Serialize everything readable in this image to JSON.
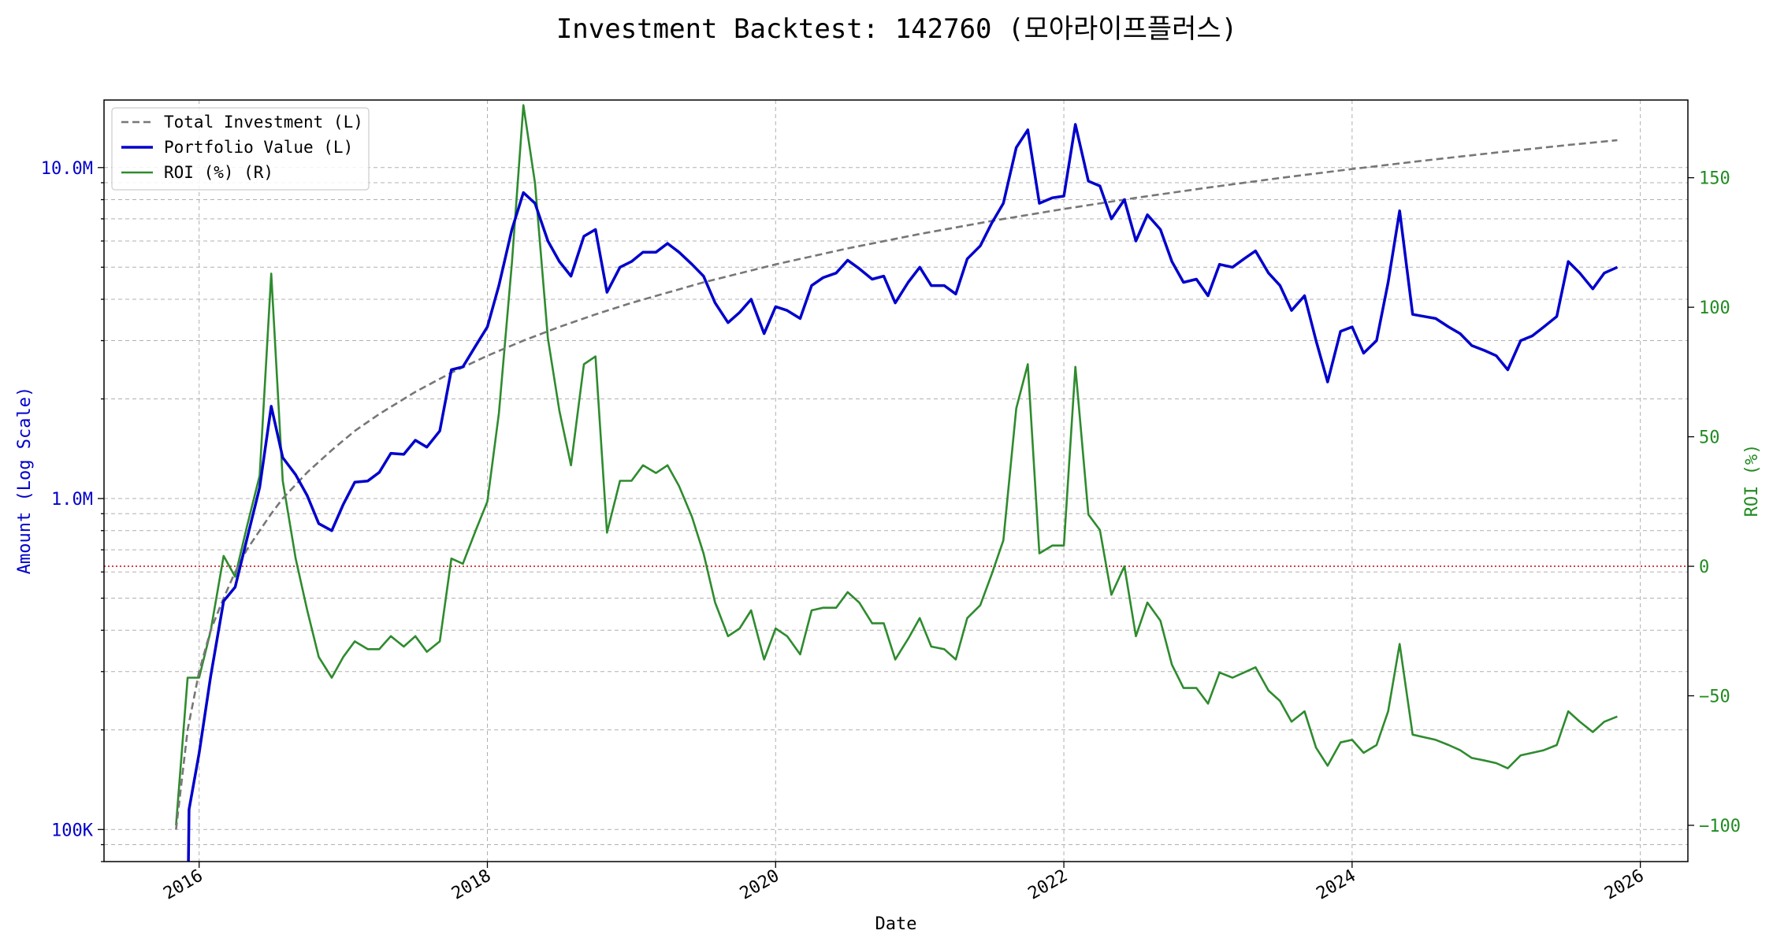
{
  "chart_data": {
    "type": "line",
    "title": "Investment Backtest: 142760 (모아라이프플러스)",
    "xlabel": "Date",
    "ylabel_left": "Amount (Log Scale)",
    "ylabel_right": "ROI (%)",
    "left_axis": {
      "scale": "log",
      "range": [
        80000,
        16000000
      ],
      "ticks": [
        {
          "value": 100000,
          "label": "100K"
        },
        {
          "value": 1000000,
          "label": "1.0M"
        },
        {
          "value": 10000000,
          "label": "10.0M"
        }
      ]
    },
    "right_axis": {
      "scale": "linear",
      "range": [
        -114,
        180
      ],
      "ticks": [
        {
          "value": -100,
          "label": "−100"
        },
        {
          "value": -50,
          "label": "−50"
        },
        {
          "value": 0,
          "label": "0"
        },
        {
          "value": 50,
          "label": "50"
        },
        {
          "value": 100,
          "label": "100"
        },
        {
          "value": 150,
          "label": "150"
        }
      ]
    },
    "x_axis": {
      "range": [
        2015.34,
        2026.33
      ],
      "ticks": [
        {
          "value": 2016,
          "label": "2016"
        },
        {
          "value": 2018,
          "label": "2018"
        },
        {
          "value": 2020,
          "label": "2020"
        },
        {
          "value": 2022,
          "label": "2022"
        },
        {
          "value": 2024,
          "label": "2024"
        },
        {
          "value": 2026,
          "label": "2026"
        }
      ]
    },
    "grid": true,
    "legend_position": "top-left",
    "reference_line": {
      "axis": "right",
      "value": 0,
      "color": "#cc0000"
    },
    "series": [
      {
        "name": "Total Investment (L)",
        "axis": "left",
        "color": "#777777",
        "style": "dashed",
        "points": [
          [
            2015.84,
            100000
          ],
          [
            2015.92,
            200000
          ],
          [
            2016.0,
            300000
          ],
          [
            2016.08,
            400000
          ],
          [
            2016.17,
            500000
          ],
          [
            2016.25,
            600000
          ],
          [
            2016.33,
            700000
          ],
          [
            2016.42,
            800000
          ],
          [
            2016.5,
            900000
          ],
          [
            2016.58,
            1000000
          ],
          [
            2016.75,
            1200000
          ],
          [
            2016.92,
            1400000
          ],
          [
            2017.08,
            1600000
          ],
          [
            2017.25,
            1800000
          ],
          [
            2017.5,
            2100000
          ],
          [
            2017.75,
            2400000
          ],
          [
            2018.0,
            2700000
          ],
          [
            2018.25,
            3000000
          ],
          [
            2018.5,
            3300000
          ],
          [
            2018.75,
            3600000
          ],
          [
            2019.0,
            3900000
          ],
          [
            2019.5,
            4500000
          ],
          [
            2020.0,
            5100000
          ],
          [
            2020.5,
            5700000
          ],
          [
            2021.0,
            6300000
          ],
          [
            2021.5,
            6900000
          ],
          [
            2022.0,
            7500000
          ],
          [
            2022.5,
            8100000
          ],
          [
            2023.0,
            8700000
          ],
          [
            2023.5,
            9300000
          ],
          [
            2024.0,
            9900000
          ],
          [
            2024.5,
            10500000
          ],
          [
            2025.0,
            11100000
          ],
          [
            2025.5,
            11700000
          ],
          [
            2025.84,
            12100000
          ]
        ]
      },
      {
        "name": "Portfolio Value (L)",
        "axis": "left",
        "color": "#0000cc",
        "style": "solid",
        "points": [
          [
            2015.92,
            50000
          ],
          [
            2015.93,
            115000
          ],
          [
            2016.0,
            170000
          ],
          [
            2016.08,
            290000
          ],
          [
            2016.17,
            490000
          ],
          [
            2016.25,
            540000
          ],
          [
            2016.33,
            750000
          ],
          [
            2016.42,
            1080000
          ],
          [
            2016.5,
            1900000
          ],
          [
            2016.58,
            1330000
          ],
          [
            2016.67,
            1180000
          ],
          [
            2016.75,
            1020000
          ],
          [
            2016.83,
            840000
          ],
          [
            2016.92,
            800000
          ],
          [
            2017.0,
            960000
          ],
          [
            2017.08,
            1120000
          ],
          [
            2017.17,
            1130000
          ],
          [
            2017.25,
            1200000
          ],
          [
            2017.33,
            1370000
          ],
          [
            2017.42,
            1360000
          ],
          [
            2017.5,
            1500000
          ],
          [
            2017.58,
            1430000
          ],
          [
            2017.67,
            1600000
          ],
          [
            2017.75,
            2450000
          ],
          [
            2017.83,
            2500000
          ],
          [
            2017.92,
            2900000
          ],
          [
            2018.0,
            3300000
          ],
          [
            2018.08,
            4400000
          ],
          [
            2018.17,
            6500000
          ],
          [
            2018.25,
            8400000
          ],
          [
            2018.33,
            7800000
          ],
          [
            2018.42,
            6000000
          ],
          [
            2018.5,
            5200000
          ],
          [
            2018.58,
            4700000
          ],
          [
            2018.67,
            6200000
          ],
          [
            2018.75,
            6500000
          ],
          [
            2018.83,
            4200000
          ],
          [
            2018.92,
            5000000
          ],
          [
            2019.0,
            5200000
          ],
          [
            2019.08,
            5550000
          ],
          [
            2019.17,
            5550000
          ],
          [
            2019.25,
            5900000
          ],
          [
            2019.33,
            5550000
          ],
          [
            2019.42,
            5100000
          ],
          [
            2019.5,
            4700000
          ],
          [
            2019.58,
            3900000
          ],
          [
            2019.67,
            3400000
          ],
          [
            2019.75,
            3650000
          ],
          [
            2019.83,
            4000000
          ],
          [
            2019.92,
            3150000
          ],
          [
            2020.0,
            3800000
          ],
          [
            2020.08,
            3700000
          ],
          [
            2020.17,
            3500000
          ],
          [
            2020.25,
            4400000
          ],
          [
            2020.33,
            4650000
          ],
          [
            2020.42,
            4800000
          ],
          [
            2020.5,
            5250000
          ],
          [
            2020.58,
            4950000
          ],
          [
            2020.67,
            4600000
          ],
          [
            2020.75,
            4700000
          ],
          [
            2020.83,
            3900000
          ],
          [
            2020.92,
            4500000
          ],
          [
            2021.0,
            5000000
          ],
          [
            2021.08,
            4400000
          ],
          [
            2021.17,
            4400000
          ],
          [
            2021.25,
            4150000
          ],
          [
            2021.33,
            5300000
          ],
          [
            2021.42,
            5800000
          ],
          [
            2021.5,
            6800000
          ],
          [
            2021.58,
            7800000
          ],
          [
            2021.67,
            11500000
          ],
          [
            2021.75,
            13000000
          ],
          [
            2021.83,
            7800000
          ],
          [
            2021.92,
            8100000
          ],
          [
            2022.0,
            8200000
          ],
          [
            2022.08,
            13500000
          ],
          [
            2022.17,
            9100000
          ],
          [
            2022.25,
            8800000
          ],
          [
            2022.33,
            7000000
          ],
          [
            2022.42,
            8000000
          ],
          [
            2022.5,
            6000000
          ],
          [
            2022.58,
            7200000
          ],
          [
            2022.67,
            6500000
          ],
          [
            2022.75,
            5200000
          ],
          [
            2022.83,
            4500000
          ],
          [
            2022.92,
            4600000
          ],
          [
            2023.0,
            4100000
          ],
          [
            2023.08,
            5100000
          ],
          [
            2023.17,
            5000000
          ],
          [
            2023.25,
            5300000
          ],
          [
            2023.33,
            5600000
          ],
          [
            2023.42,
            4800000
          ],
          [
            2023.5,
            4400000
          ],
          [
            2023.58,
            3700000
          ],
          [
            2023.67,
            4100000
          ],
          [
            2023.75,
            3000000
          ],
          [
            2023.83,
            2250000
          ],
          [
            2023.92,
            3200000
          ],
          [
            2024.0,
            3300000
          ],
          [
            2024.08,
            2750000
          ],
          [
            2024.17,
            3000000
          ],
          [
            2024.25,
            4500000
          ],
          [
            2024.33,
            7400000
          ],
          [
            2024.42,
            3600000
          ],
          [
            2024.5,
            3550000
          ],
          [
            2024.58,
            3500000
          ],
          [
            2024.67,
            3300000
          ],
          [
            2024.75,
            3150000
          ],
          [
            2024.83,
            2900000
          ],
          [
            2024.92,
            2800000
          ],
          [
            2025.0,
            2700000
          ],
          [
            2025.08,
            2450000
          ],
          [
            2025.17,
            3000000
          ],
          [
            2025.25,
            3100000
          ],
          [
            2025.33,
            3300000
          ],
          [
            2025.42,
            3550000
          ],
          [
            2025.5,
            5200000
          ],
          [
            2025.58,
            4800000
          ],
          [
            2025.67,
            4300000
          ],
          [
            2025.75,
            4800000
          ],
          [
            2025.84,
            5000000
          ]
        ]
      },
      {
        "name": "ROI (%) (R)",
        "axis": "right",
        "color": "#2e8b2e",
        "style": "solid",
        "points": [
          [
            2015.84,
            -100
          ],
          [
            2015.92,
            -43
          ],
          [
            2016.0,
            -43
          ],
          [
            2016.08,
            -25
          ],
          [
            2016.17,
            4
          ],
          [
            2016.25,
            -4
          ],
          [
            2016.33,
            15
          ],
          [
            2016.42,
            35
          ],
          [
            2016.5,
            113
          ],
          [
            2016.58,
            33
          ],
          [
            2016.67,
            3
          ],
          [
            2016.75,
            -17
          ],
          [
            2016.83,
            -35
          ],
          [
            2016.92,
            -43
          ],
          [
            2017.0,
            -35
          ],
          [
            2017.08,
            -29
          ],
          [
            2017.17,
            -32
          ],
          [
            2017.25,
            -32
          ],
          [
            2017.33,
            -27
          ],
          [
            2017.42,
            -31
          ],
          [
            2017.5,
            -27
          ],
          [
            2017.58,
            -33
          ],
          [
            2017.67,
            -29
          ],
          [
            2017.75,
            3
          ],
          [
            2017.83,
            1
          ],
          [
            2017.92,
            14
          ],
          [
            2018.0,
            25
          ],
          [
            2018.08,
            59
          ],
          [
            2018.17,
            117
          ],
          [
            2018.25,
            178
          ],
          [
            2018.33,
            148
          ],
          [
            2018.42,
            88
          ],
          [
            2018.5,
            60
          ],
          [
            2018.58,
            39
          ],
          [
            2018.67,
            78
          ],
          [
            2018.75,
            81
          ],
          [
            2018.83,
            13
          ],
          [
            2018.92,
            33
          ],
          [
            2019.0,
            33
          ],
          [
            2019.08,
            39
          ],
          [
            2019.17,
            36
          ],
          [
            2019.25,
            39
          ],
          [
            2019.33,
            31
          ],
          [
            2019.42,
            19
          ],
          [
            2019.5,
            5
          ],
          [
            2019.58,
            -14
          ],
          [
            2019.67,
            -27
          ],
          [
            2019.75,
            -24
          ],
          [
            2019.83,
            -17
          ],
          [
            2019.92,
            -36
          ],
          [
            2020.0,
            -24
          ],
          [
            2020.08,
            -27
          ],
          [
            2020.17,
            -34
          ],
          [
            2020.25,
            -17
          ],
          [
            2020.33,
            -16
          ],
          [
            2020.42,
            -16
          ],
          [
            2020.5,
            -10
          ],
          [
            2020.58,
            -14
          ],
          [
            2020.67,
            -22
          ],
          [
            2020.75,
            -22
          ],
          [
            2020.83,
            -36
          ],
          [
            2020.92,
            -28
          ],
          [
            2021.0,
            -20
          ],
          [
            2021.08,
            -31
          ],
          [
            2021.17,
            -32
          ],
          [
            2021.25,
            -36
          ],
          [
            2021.33,
            -20
          ],
          [
            2021.42,
            -15
          ],
          [
            2021.5,
            -3
          ],
          [
            2021.58,
            10
          ],
          [
            2021.67,
            61
          ],
          [
            2021.75,
            78
          ],
          [
            2021.83,
            5
          ],
          [
            2021.92,
            8
          ],
          [
            2022.0,
            8
          ],
          [
            2022.08,
            77
          ],
          [
            2022.17,
            20
          ],
          [
            2022.25,
            14
          ],
          [
            2022.33,
            -11
          ],
          [
            2022.42,
            0
          ],
          [
            2022.5,
            -27
          ],
          [
            2022.58,
            -14
          ],
          [
            2022.67,
            -21
          ],
          [
            2022.75,
            -38
          ],
          [
            2022.83,
            -47
          ],
          [
            2022.92,
            -47
          ],
          [
            2023.0,
            -53
          ],
          [
            2023.08,
            -41
          ],
          [
            2023.17,
            -43
          ],
          [
            2023.25,
            -41
          ],
          [
            2023.33,
            -39
          ],
          [
            2023.42,
            -48
          ],
          [
            2023.5,
            -52
          ],
          [
            2023.58,
            -60
          ],
          [
            2023.67,
            -56
          ],
          [
            2023.75,
            -70
          ],
          [
            2023.83,
            -77
          ],
          [
            2023.92,
            -68
          ],
          [
            2024.0,
            -67
          ],
          [
            2024.08,
            -72
          ],
          [
            2024.17,
            -69
          ],
          [
            2024.25,
            -56
          ],
          [
            2024.33,
            -30
          ],
          [
            2024.42,
            -65
          ],
          [
            2024.5,
            -66
          ],
          [
            2024.58,
            -67
          ],
          [
            2024.67,
            -69
          ],
          [
            2024.75,
            -71
          ],
          [
            2024.83,
            -74
          ],
          [
            2024.92,
            -75
          ],
          [
            2025.0,
            -76
          ],
          [
            2025.08,
            -78
          ],
          [
            2025.17,
            -73
          ],
          [
            2025.25,
            -72
          ],
          [
            2025.33,
            -71
          ],
          [
            2025.42,
            -69
          ],
          [
            2025.5,
            -56
          ],
          [
            2025.58,
            -60
          ],
          [
            2025.67,
            -64
          ],
          [
            2025.75,
            -60
          ],
          [
            2025.84,
            -58
          ]
        ]
      }
    ]
  }
}
